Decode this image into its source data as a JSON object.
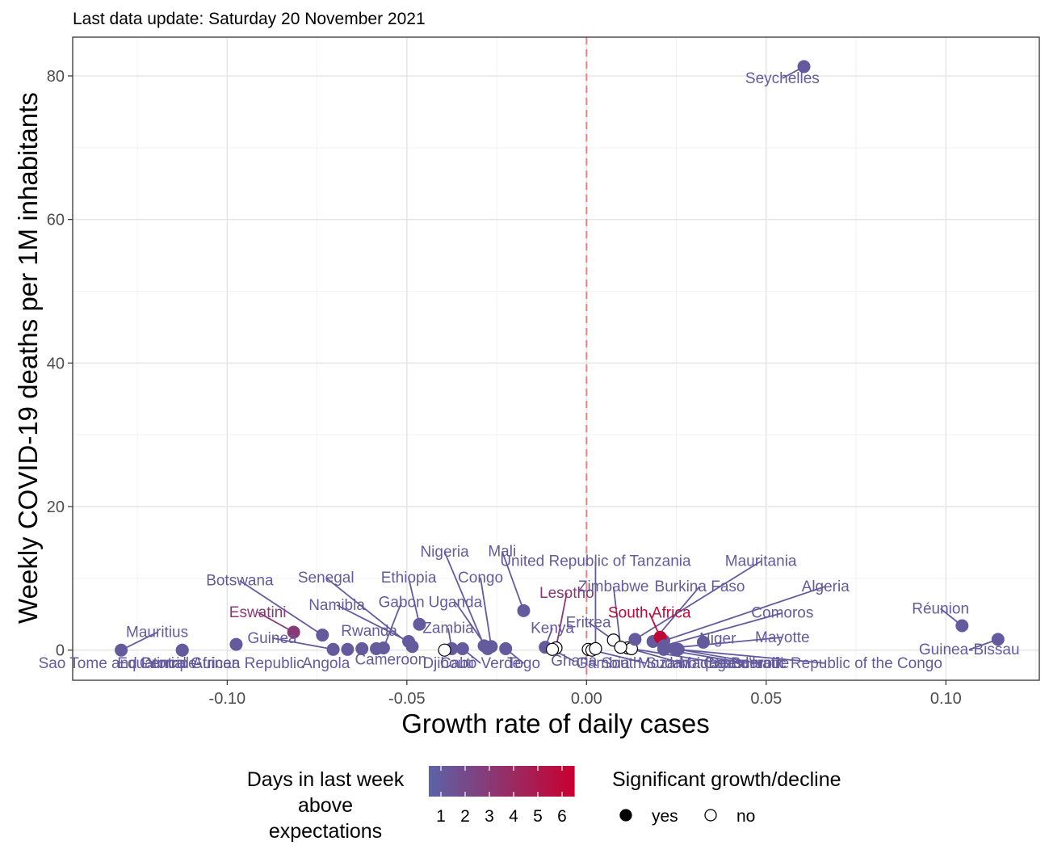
{
  "subtitle": "Last data update: Saturday 20 November 2021",
  "chart_data": {
    "type": "scatter",
    "xlabel": "Growth rate of daily cases",
    "ylabel": "Weekly COVID-19 deaths per 1M inhabitants",
    "xlim": [
      -0.143,
      0.126
    ],
    "ylim": [
      -4.2,
      85.4
    ],
    "x_ticks": [
      -0.1,
      -0.05,
      0.0,
      0.05,
      0.1
    ],
    "x_tick_labels": [
      "-0.10",
      "-0.05",
      "0.00",
      "0.05",
      "0.10"
    ],
    "y_ticks": [
      0,
      20,
      40,
      60,
      80
    ],
    "y_tick_labels": [
      "0",
      "20",
      "40",
      "60",
      "80"
    ],
    "grid": true,
    "reference_line": {
      "x": 0,
      "style": "dashed",
      "color": "#f08080"
    },
    "color_scale": {
      "title": [
        "Days in last week",
        "above",
        "expectations"
      ],
      "low": "#5b63a8",
      "high": "#c8002f",
      "min": 0.5,
      "max": 6.5,
      "ticks": [
        1,
        2,
        3,
        4,
        5,
        6
      ]
    },
    "shape_legend": {
      "title": "Significant growth/decline",
      "items": [
        {
          "label": "yes",
          "filled": true
        },
        {
          "label": "no",
          "filled": false
        }
      ]
    },
    "points": [
      {
        "label": "Seychelles",
        "x": 0.0605,
        "y": 81.3,
        "days": 1,
        "sig": true,
        "lx": 0.0545,
        "ly": 79.0
      },
      {
        "label": "Mauritius",
        "x": -0.1295,
        "y": 0.0,
        "days": 1,
        "sig": true,
        "lx": -0.1195,
        "ly": 1.8
      },
      {
        "label": "Sao Tome and Principe",
        "x": -0.1125,
        "y": 0.0,
        "days": 1,
        "sig": true,
        "lx": -0.1305,
        "ly": -2.5,
        "line": false
      },
      {
        "label": "Equatorial Guinea",
        "x": -0.1125,
        "y": 0.0,
        "days": 1,
        "sig": true,
        "lx": -0.1135,
        "ly": -2.5,
        "line": false
      },
      {
        "label": "Central African Republic",
        "x": -0.0975,
        "y": 0.8,
        "days": 1,
        "sig": true,
        "lx": -0.1015,
        "ly": -2.5,
        "line": false
      },
      {
        "label": "Angola",
        "x": -0.0625,
        "y": 0.2,
        "days": 1,
        "sig": true,
        "lx": -0.0725,
        "ly": -2.5,
        "line": false
      },
      {
        "label": "Guinea",
        "x": -0.0705,
        "y": 0.1,
        "days": 1,
        "sig": true,
        "lx": -0.0875,
        "ly": 1.0
      },
      {
        "label": "Eswatini",
        "x": -0.0815,
        "y": 2.5,
        "days": 3,
        "sig": true,
        "lx": -0.0915,
        "ly": 4.6
      },
      {
        "label": "Botswana",
        "x": -0.0735,
        "y": 2.1,
        "days": 1,
        "sig": true,
        "lx": -0.0965,
        "ly": 9.0
      },
      {
        "label": "Rwanda",
        "x": -0.0665,
        "y": 0.1,
        "days": 1,
        "sig": true,
        "lx": -0.0605,
        "ly": 2.0,
        "line": false
      },
      {
        "label": "Namibia",
        "x": -0.0495,
        "y": 1.2,
        "days": 1,
        "sig": true,
        "lx": -0.0695,
        "ly": 5.6
      },
      {
        "label": "Senegal",
        "x": -0.0485,
        "y": 0.5,
        "days": 1,
        "sig": true,
        "lx": -0.0725,
        "ly": 9.4
      },
      {
        "label": "Gabon",
        "x": -0.0565,
        "y": 0.3,
        "days": 1,
        "sig": true,
        "lx": -0.0515,
        "ly": 6.0
      },
      {
        "label": "Cameroon",
        "x": -0.0585,
        "y": 0.2,
        "days": 1,
        "sig": true,
        "lx": -0.0545,
        "ly": -2.0,
        "line": false
      },
      {
        "label": "Ethiopia",
        "x": -0.0465,
        "y": 3.6,
        "days": 1,
        "sig": true,
        "lx": -0.0495,
        "ly": 9.4
      },
      {
        "label": "Nigeria",
        "x": -0.0285,
        "y": 0.6,
        "days": 1,
        "sig": true,
        "lx": -0.0395,
        "ly": 13.0
      },
      {
        "label": "Congo",
        "x": -0.0265,
        "y": 0.5,
        "days": 1,
        "sig": true,
        "lx": -0.0295,
        "ly": 9.4
      },
      {
        "label": "Uganda",
        "x": -0.0275,
        "y": 0.2,
        "days": 1,
        "sig": true,
        "lx": -0.0365,
        "ly": 6.0
      },
      {
        "label": "Mali",
        "x": -0.0175,
        "y": 5.5,
        "days": 1,
        "sig": true,
        "lx": -0.0235,
        "ly": 13.1
      },
      {
        "label": "Lesotho",
        "x": -0.0085,
        "y": 0.3,
        "days": 3,
        "sig": false,
        "lx": -0.0055,
        "ly": 7.3
      },
      {
        "label": "Zambia",
        "x": -0.0375,
        "y": 0.2,
        "days": 1,
        "sig": true,
        "lx": -0.0385,
        "ly": 2.4
      },
      {
        "label": "Djibouti",
        "x": -0.0395,
        "y": 0.0,
        "days": 1,
        "sig": false,
        "lx": -0.0385,
        "ly": -2.5,
        "line": false
      },
      {
        "label": "Cabo Verde",
        "x": -0.0345,
        "y": 0.2,
        "days": 1,
        "sig": true,
        "lx": -0.0295,
        "ly": -2.5
      },
      {
        "label": "Togo",
        "x": -0.0225,
        "y": 0.2,
        "days": 1,
        "sig": true,
        "lx": -0.0175,
        "ly": -2.5
      },
      {
        "label": "Kenya",
        "x": -0.0115,
        "y": 0.4,
        "days": 1,
        "sig": true,
        "lx": -0.0095,
        "ly": 2.4
      },
      {
        "label": "Ghana",
        "x": -0.0095,
        "y": 0.1,
        "days": 1,
        "sig": false,
        "lx": -0.0035,
        "ly": -2.2
      },
      {
        "label": "Gambia",
        "x": 0.0005,
        "y": 0.1,
        "days": 1,
        "sig": false,
        "lx": 0.0045,
        "ly": -2.5,
        "line": false
      },
      {
        "label": "South Sudan",
        "x": 0.0015,
        "y": 0.0,
        "days": 1,
        "sig": false,
        "lx": 0.0165,
        "ly": -2.5
      },
      {
        "label": "Mozambique",
        "x": 0.0115,
        "y": 0.3,
        "days": 1,
        "sig": false,
        "lx": 0.0265,
        "ly": -2.5
      },
      {
        "label": "Madagascar",
        "x": 0.0125,
        "y": 0.2,
        "days": 1,
        "sig": false,
        "lx": 0.0375,
        "ly": -2.5
      },
      {
        "label": "Cote d'Ivoire",
        "x": 0.0215,
        "y": 0.1,
        "days": 1,
        "sig": true,
        "lx": 0.0445,
        "ly": -2.5
      },
      {
        "label": "Burundi",
        "x": 0.0245,
        "y": 0.2,
        "days": 1,
        "sig": true,
        "lx": 0.0475,
        "ly": -2.5
      },
      {
        "label": "Democratic Republic of the Congo",
        "x": 0.0255,
        "y": 0.1,
        "days": 1,
        "sig": true,
        "lx": 0.0665,
        "ly": -2.5
      },
      {
        "label": "United Republic of Tanzania",
        "x": 0.0025,
        "y": 0.2,
        "days": 1,
        "sig": false,
        "lx": 0.0025,
        "ly": 11.7
      },
      {
        "label": "Mauritania",
        "x": 0.0135,
        "y": 1.5,
        "days": 1,
        "sig": true,
        "lx": 0.0485,
        "ly": 11.7
      },
      {
        "label": "Eritrea",
        "x": 0.0075,
        "y": 1.4,
        "days": 1,
        "sig": false,
        "lx": 0.0005,
        "ly": 3.2
      },
      {
        "label": "Zimbabwe",
        "x": 0.0095,
        "y": 0.4,
        "days": 1,
        "sig": false,
        "lx": 0.0075,
        "ly": 8.2
      },
      {
        "label": "Burkina Faso",
        "x": 0.0185,
        "y": 1.2,
        "days": 1,
        "sig": true,
        "lx": 0.0315,
        "ly": 8.2
      },
      {
        "label": "Algeria",
        "x": 0.0215,
        "y": 1.3,
        "days": 1,
        "sig": true,
        "lx": 0.0665,
        "ly": 8.2
      },
      {
        "label": "South Africa",
        "x": 0.0205,
        "y": 1.8,
        "days": 6,
        "sig": true,
        "lx": 0.0175,
        "ly": 4.5
      },
      {
        "label": "Comoros",
        "x": 0.0215,
        "y": 0.6,
        "days": 1,
        "sig": true,
        "lx": 0.0545,
        "ly": 4.5
      },
      {
        "label": "Niger",
        "x": 0.0325,
        "y": 1.1,
        "days": 1,
        "sig": true,
        "lx": 0.0365,
        "ly": 0.9
      },
      {
        "label": "Mayotte",
        "x": 0.0215,
        "y": 0.2,
        "days": 1,
        "sig": true,
        "lx": 0.0545,
        "ly": 1.1
      },
      {
        "label": "Réunion",
        "x": 0.1045,
        "y": 3.4,
        "days": 1,
        "sig": true,
        "lx": 0.0985,
        "ly": 5.1
      },
      {
        "label": "Guinea-Bissau",
        "x": 0.1145,
        "y": 1.5,
        "days": 1,
        "sig": true,
        "lx": 0.1065,
        "ly": -0.6
      }
    ]
  }
}
